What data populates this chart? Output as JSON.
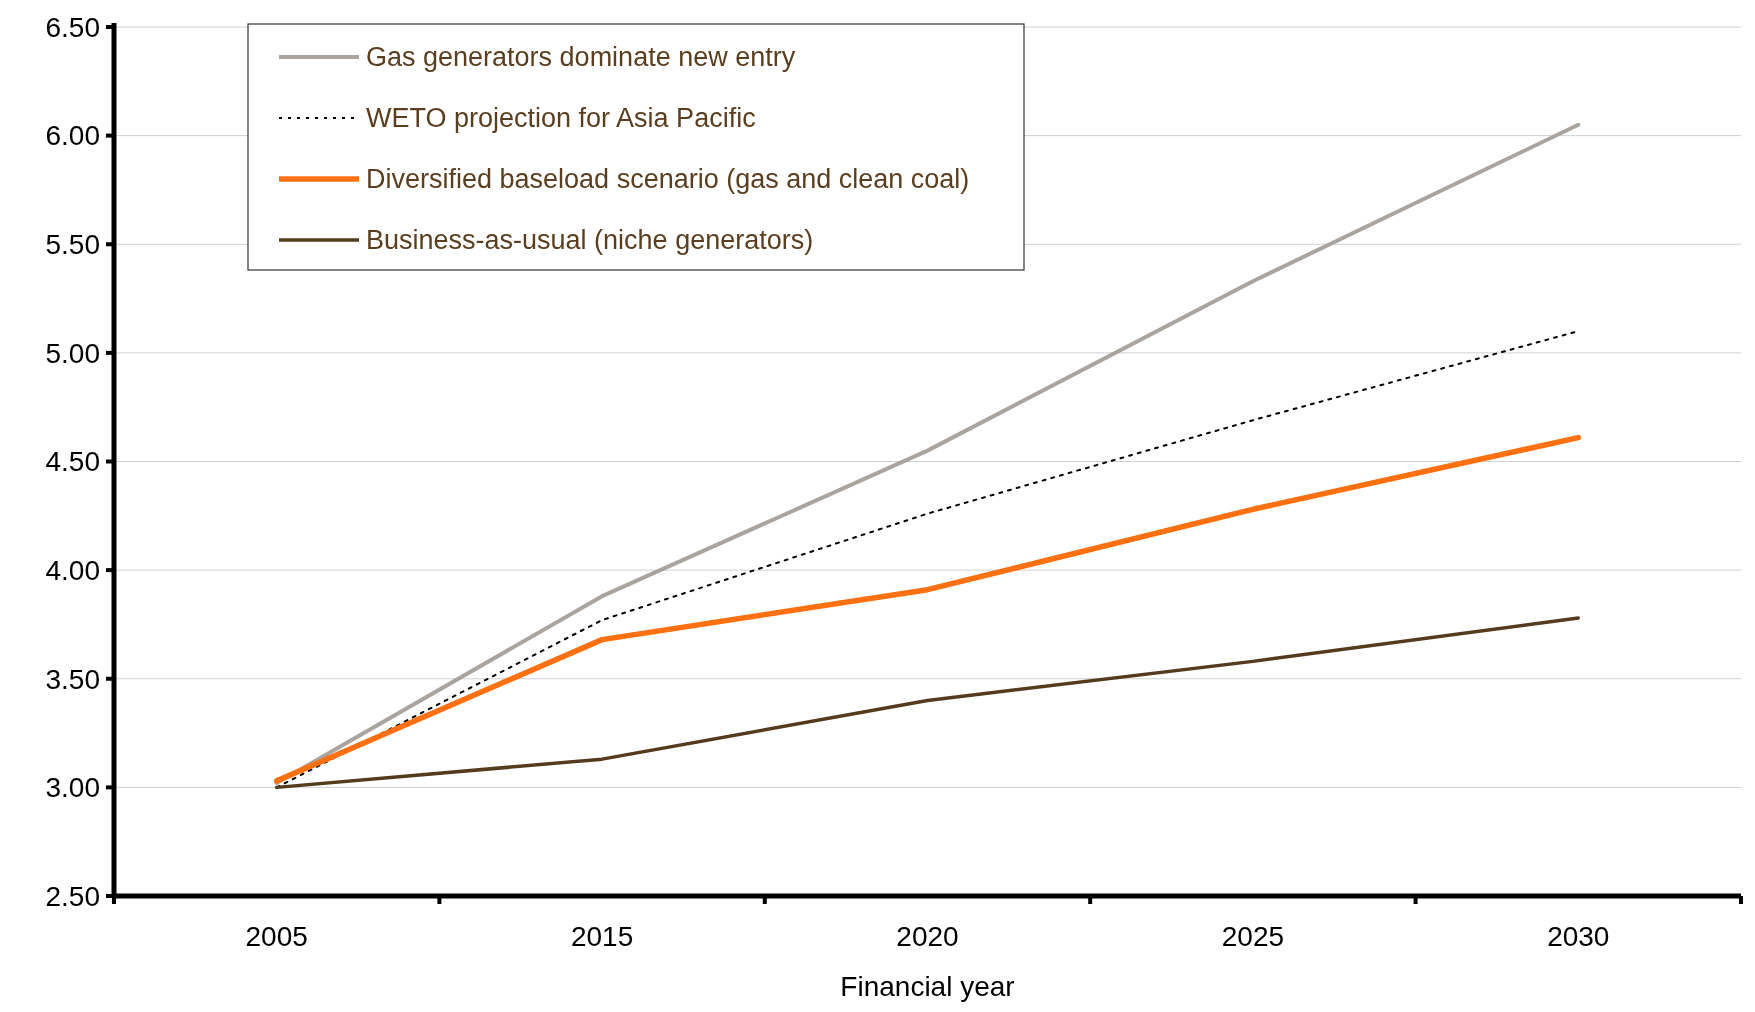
{
  "chart_data": {
    "type": "line",
    "xlabel": "Financial year",
    "categories": [
      "2005",
      "2015",
      "2020",
      "2025",
      "2030"
    ],
    "series": [
      {
        "name": "Gas generators dominate new entry",
        "color": "#aaa49f",
        "values": [
          3.02,
          3.88,
          4.55,
          5.33,
          6.05
        ]
      },
      {
        "name": "WETO projection for Asia Pacific",
        "color": "#000000",
        "line_style": "dotted",
        "values": [
          3.0,
          3.77,
          4.26,
          4.69,
          5.1
        ]
      },
      {
        "name": "Diversified baseload scenario (gas and clean coal)",
        "color": "#ff7010",
        "values": [
          3.03,
          3.68,
          3.91,
          4.28,
          4.61
        ]
      },
      {
        "name": "Business-as-usual (niche generators)",
        "color": "#553a1e",
        "values": [
          3.0,
          3.13,
          3.4,
          3.58,
          3.78
        ]
      }
    ],
    "ylim": [
      2.5,
      6.5
    ],
    "yticks": [
      {
        "value": 2.5,
        "label": "2.50"
      },
      {
        "value": 3,
        "label": "3.00"
      },
      {
        "value": 3.5,
        "label": "3.50"
      },
      {
        "value": 4,
        "label": "4.00"
      },
      {
        "value": 4.5,
        "label": "4.50"
      },
      {
        "value": 5,
        "label": "5.00"
      },
      {
        "value": 5.5,
        "label": "5.50"
      },
      {
        "value": 6,
        "label": "6.00"
      },
      {
        "value": 6.5,
        "label": "6.50"
      }
    ],
    "grid": "y",
    "legend": "top left",
    "line_style": "solid",
    "marker": "none"
  }
}
